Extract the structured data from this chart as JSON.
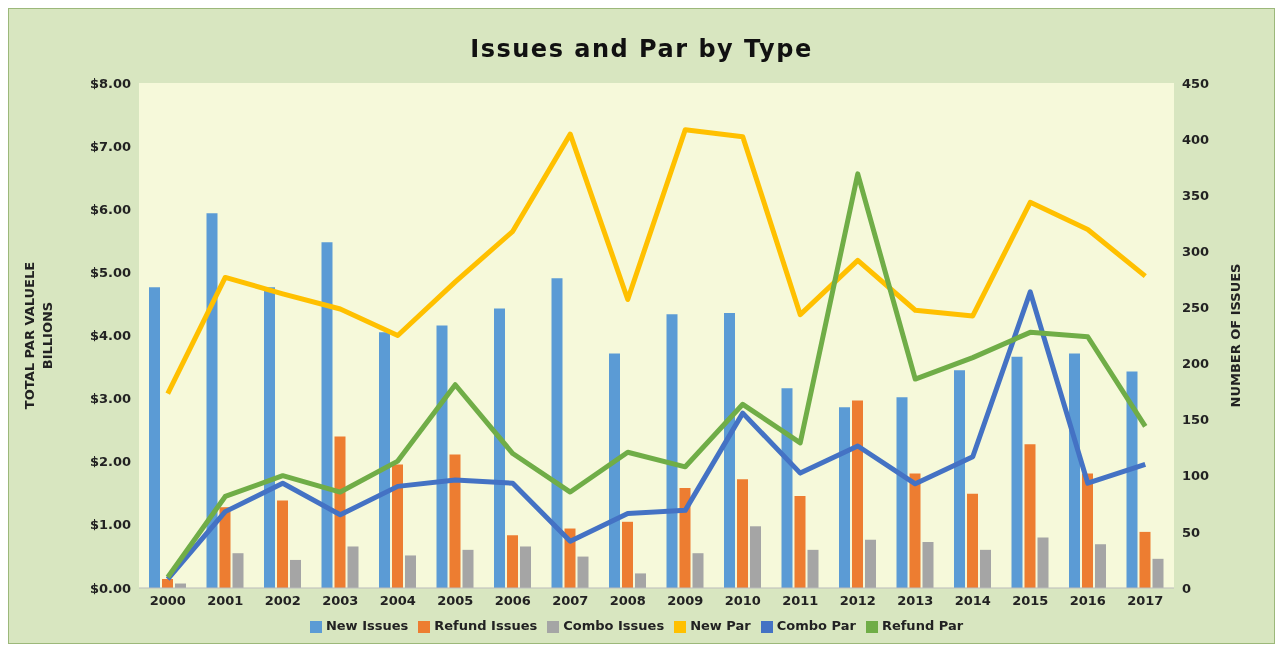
{
  "chart_data": {
    "type": "bar",
    "title": "Issues and Par by Type",
    "ylabel": "TOTAL PAR VALUELE\nBILLIONS",
    "y2label": "NUMBER OF ISSUES",
    "categories": [
      "2000",
      "2001",
      "2002",
      "2003",
      "2004",
      "2005",
      "2006",
      "2007",
      "2008",
      "2009",
      "2010",
      "2011",
      "2012",
      "2013",
      "2014",
      "2015",
      "2016",
      "2017"
    ],
    "series": [
      {
        "name": "New Issues",
        "axis": "y2",
        "color": "#5b9bd5",
        "values": [
          268,
          334,
          268,
          308,
          228,
          234,
          249,
          276,
          209,
          244,
          245,
          178,
          161,
          170,
          194,
          206,
          209,
          193
        ]
      },
      {
        "name": "Refund Issues",
        "axis": "y2",
        "color": "#ed7d31",
        "values": [
          8,
          72,
          78,
          135,
          110,
          119,
          47,
          53,
          59,
          89,
          97,
          82,
          167,
          102,
          84,
          128,
          102,
          50
        ]
      },
      {
        "name": "Combo Issues",
        "axis": "y2",
        "color": "#a5a5a5",
        "values": [
          4,
          31,
          25,
          37,
          29,
          34,
          37,
          28,
          13,
          31,
          55,
          34,
          43,
          41,
          34,
          45,
          39,
          26
        ]
      },
      {
        "name": "New Par",
        "type": "line",
        "color": "#ffc000",
        "values": [
          3.08,
          4.92,
          4.66,
          4.42,
          4.0,
          4.85,
          5.65,
          7.19,
          4.57,
          7.26,
          7.15,
          4.33,
          5.19,
          4.4,
          4.31,
          6.11,
          5.68,
          4.94
        ]
      },
      {
        "name": "Combo Par",
        "type": "line",
        "color": "#4472c4",
        "values": [
          0.14,
          1.21,
          1.66,
          1.16,
          1.61,
          1.71,
          1.66,
          0.74,
          1.18,
          1.23,
          2.77,
          1.82,
          2.25,
          1.65,
          2.08,
          4.69,
          1.66,
          1.96
        ]
      },
      {
        "name": "Refund Par",
        "type": "line",
        "color": "#70ad47",
        "values": [
          0.17,
          1.45,
          1.78,
          1.52,
          2.01,
          3.22,
          2.13,
          1.52,
          2.15,
          1.92,
          2.91,
          2.3,
          6.56,
          3.31,
          3.65,
          4.05,
          3.98,
          2.56
        ]
      }
    ],
    "ylim": [
      0,
      8
    ],
    "yticks": [
      {
        "value": 0,
        "label": "$0.00"
      },
      {
        "value": 1,
        "label": "$1.00"
      },
      {
        "value": 2,
        "label": "$2.00"
      },
      {
        "value": 3,
        "label": "$3.00"
      },
      {
        "value": 4,
        "label": "$4.00"
      },
      {
        "value": 5,
        "label": "$5.00"
      },
      {
        "value": 6,
        "label": "$6.00"
      },
      {
        "value": 7,
        "label": "$7.00"
      },
      {
        "value": 8,
        "label": "$8.00"
      }
    ],
    "y2lim": [
      0,
      450
    ],
    "y2ticks": [
      0,
      50,
      100,
      150,
      200,
      250,
      300,
      350,
      400,
      450
    ],
    "grid": false,
    "legend": "bottom"
  }
}
